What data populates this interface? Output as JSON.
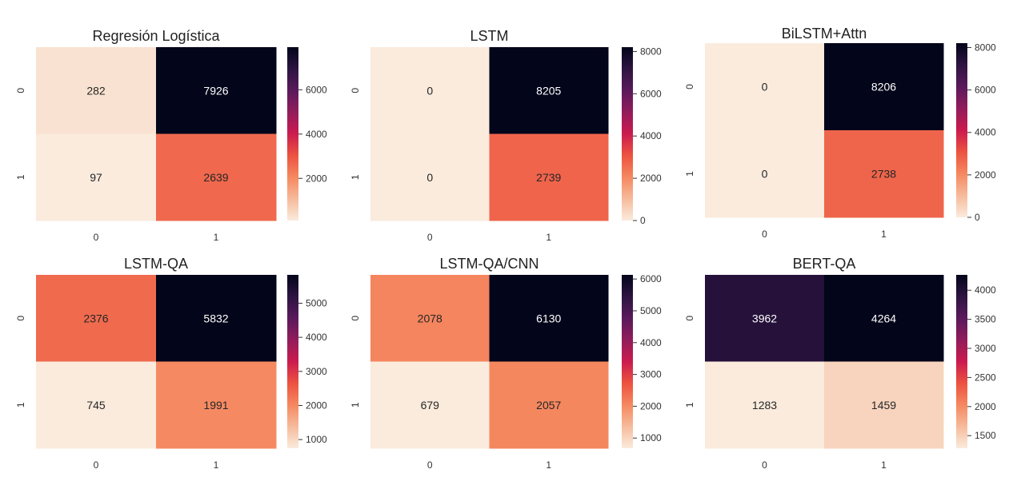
{
  "chart_data": [
    {
      "type": "heatmap",
      "title": "Regresión Logística",
      "x_ticks": [
        "0",
        "1"
      ],
      "y_ticks": [
        "0",
        "1"
      ],
      "values": [
        [
          282,
          7926
        ],
        [
          97,
          2639
        ]
      ],
      "colorbar_range": [
        97,
        7926
      ],
      "colorbar_ticks": [
        2000,
        4000,
        6000
      ]
    },
    {
      "type": "heatmap",
      "title": "LSTM",
      "x_ticks": [
        "0",
        "1"
      ],
      "y_ticks": [
        "0",
        "1"
      ],
      "values": [
        [
          0,
          8205
        ],
        [
          0,
          2739
        ]
      ],
      "colorbar_range": [
        0,
        8205
      ],
      "colorbar_ticks": [
        0,
        2000,
        4000,
        6000,
        8000
      ]
    },
    {
      "type": "heatmap",
      "title": "BiLSTM+Attn",
      "x_ticks": [
        "0",
        "1"
      ],
      "y_ticks": [
        "0",
        "1"
      ],
      "values": [
        [
          0,
          8206
        ],
        [
          0,
          2738
        ]
      ],
      "colorbar_range": [
        0,
        8206
      ],
      "colorbar_ticks": [
        0,
        2000,
        4000,
        6000,
        8000
      ]
    },
    {
      "type": "heatmap",
      "title": "LSTM-QA",
      "x_ticks": [
        "0",
        "1"
      ],
      "y_ticks": [
        "0",
        "1"
      ],
      "values": [
        [
          2376,
          5832
        ],
        [
          745,
          1991
        ]
      ],
      "colorbar_range": [
        745,
        5832
      ],
      "colorbar_ticks": [
        1000,
        2000,
        3000,
        4000,
        5000
      ]
    },
    {
      "type": "heatmap",
      "title": "LSTM-QA/CNN",
      "x_ticks": [
        "0",
        "1"
      ],
      "y_ticks": [
        "0",
        "1"
      ],
      "values": [
        [
          2078,
          6130
        ],
        [
          679,
          2057
        ]
      ],
      "colorbar_range": [
        679,
        6130
      ],
      "colorbar_ticks": [
        1000,
        2000,
        3000,
        4000,
        5000,
        6000
      ]
    },
    {
      "type": "heatmap",
      "title": "BERT-QA",
      "x_ticks": [
        "0",
        "1"
      ],
      "y_ticks": [
        "0",
        "1"
      ],
      "values": [
        [
          3962,
          4264
        ],
        [
          1283,
          1459
        ]
      ],
      "colorbar_range": [
        1283,
        4264
      ],
      "colorbar_ticks": [
        1500,
        2000,
        2500,
        3000,
        3500,
        4000
      ]
    }
  ],
  "colormap": [
    "#faebdd",
    "#f6bb9b",
    "#f58860",
    "#ec5340",
    "#cb1b4f",
    "#921c5b",
    "#5a1a5c",
    "#2d1441",
    "#03051a"
  ]
}
